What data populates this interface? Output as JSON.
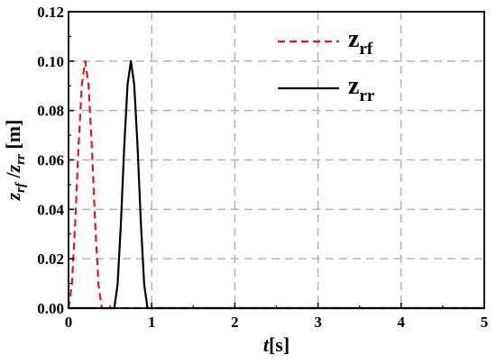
{
  "chart_data": {
    "type": "line",
    "xlabel": {
      "main": "t",
      "unit": "[s]"
    },
    "ylabel": {
      "var1": "z",
      "sub1": "rf",
      "sep": " /",
      "var2": "z",
      "sub2": "rr",
      "unit": " [m]"
    },
    "xlim": [
      0,
      5
    ],
    "ylim": [
      0,
      0.12
    ],
    "xticks": [
      "0",
      "1",
      "2",
      "3",
      "4",
      "5"
    ],
    "yticks": [
      "0.00",
      "0.02",
      "0.04",
      "0.06",
      "0.08",
      "0.10",
      "0.12"
    ],
    "grid": true,
    "legend_position": "top-right",
    "series": [
      {
        "name": "z_rf",
        "legend_main": "z",
        "legend_sub": "rf",
        "color": "#e8141e",
        "dash": "dashed",
        "x": [
          0,
          0.04,
          0.08,
          0.12,
          0.16,
          0.2,
          0.24,
          0.28,
          0.32,
          0.36,
          0.4,
          5
        ],
        "y": [
          0,
          0.0095,
          0.0345,
          0.0655,
          0.0905,
          0.1,
          0.0905,
          0.0655,
          0.0345,
          0.0095,
          0,
          0
        ]
      },
      {
        "name": "z_rr",
        "legend_main": "z",
        "legend_sub": "rr",
        "color": "#000000",
        "dash": "solid",
        "x": [
          0,
          0.55,
          0.59,
          0.63,
          0.67,
          0.71,
          0.75,
          0.79,
          0.83,
          0.87,
          0.91,
          0.95,
          5
        ],
        "y": [
          0,
          0,
          0.0095,
          0.0345,
          0.0655,
          0.0905,
          0.1,
          0.0905,
          0.0655,
          0.0345,
          0.0095,
          0,
          0
        ]
      }
    ]
  }
}
